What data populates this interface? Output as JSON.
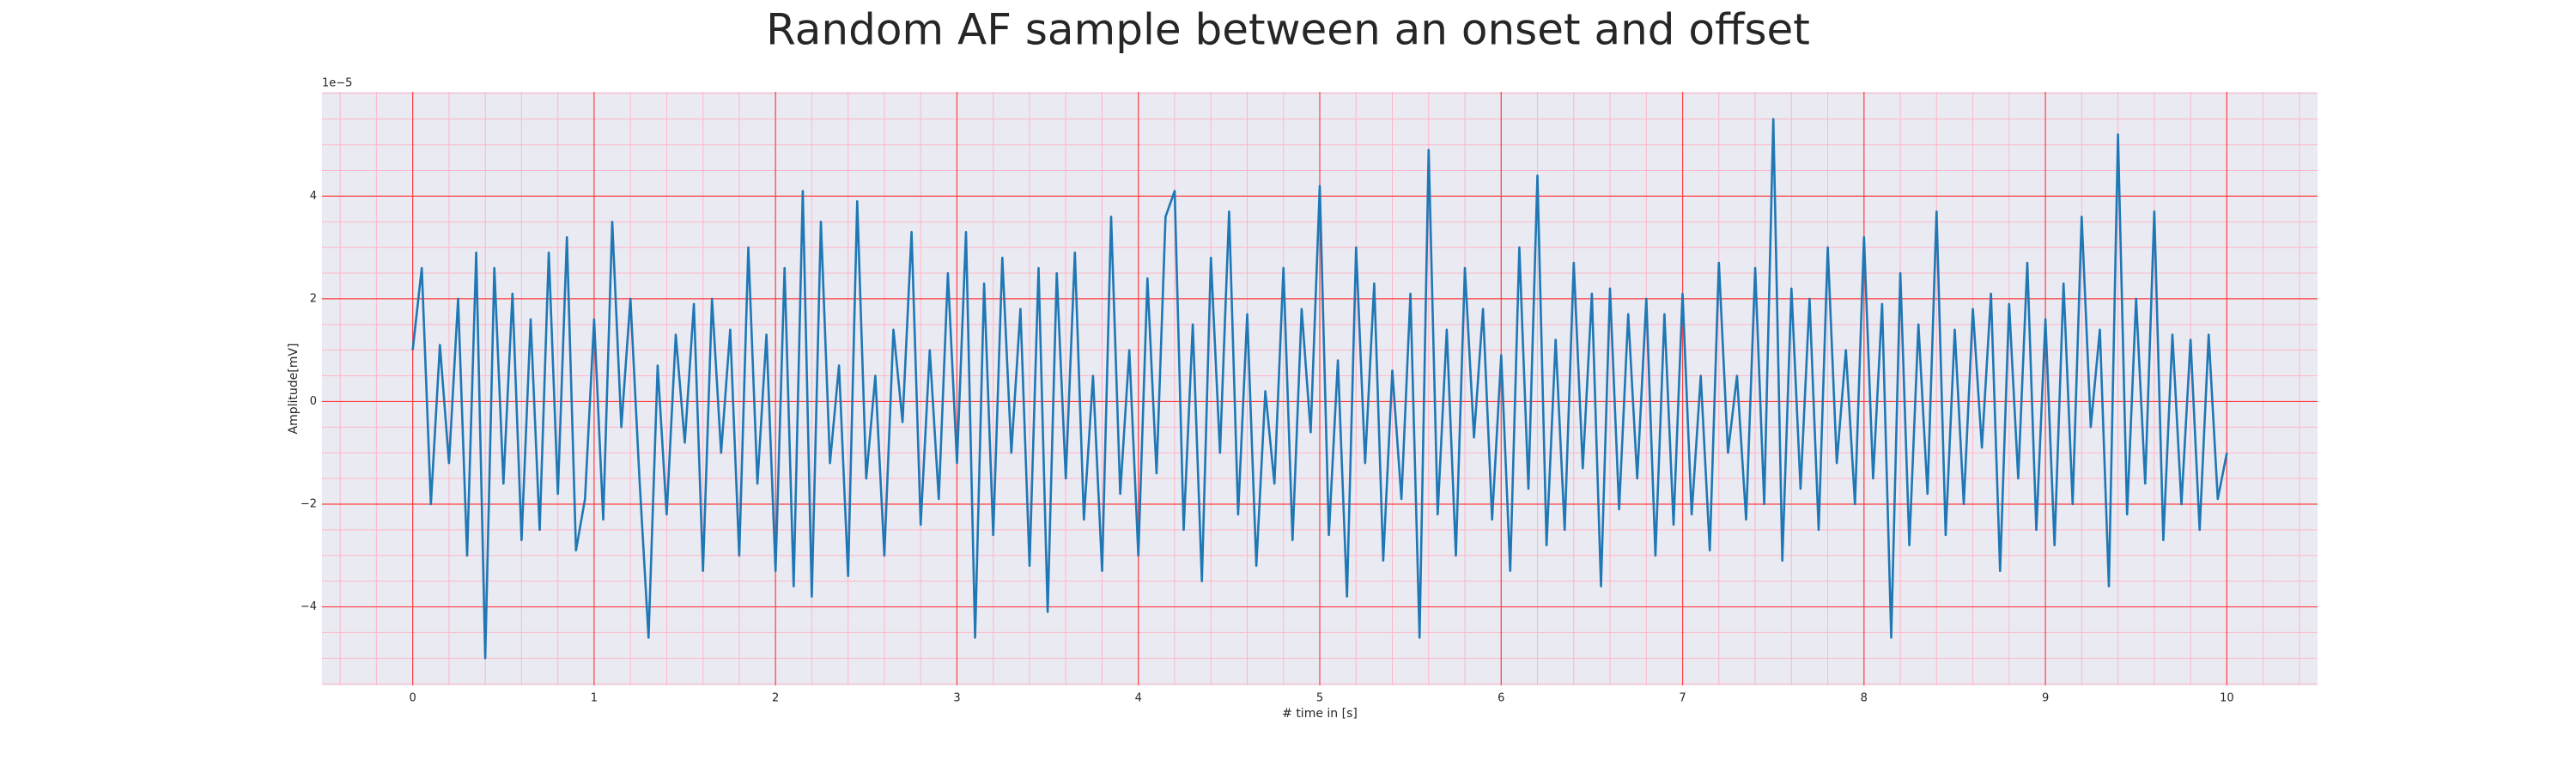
{
  "chart_data": {
    "type": "line",
    "title": "Random AF sample between an onset and offset",
    "xlabel": "# time in [s]",
    "ylabel": "Amplitude[mV]",
    "y_offset_label": "1e−5",
    "x": [
      0,
      0.05,
      0.1,
      0.15,
      0.2,
      0.25,
      0.3,
      0.35,
      0.4,
      0.45,
      0.5,
      0.55,
      0.6,
      0.65,
      0.7,
      0.75,
      0.8,
      0.85,
      0.9,
      0.95,
      1,
      1.05,
      1.1,
      1.15,
      1.2,
      1.25,
      1.3,
      1.35,
      1.4,
      1.45,
      1.5,
      1.55,
      1.6,
      1.65,
      1.7,
      1.75,
      1.8,
      1.85,
      1.9,
      1.95,
      2,
      2.05,
      2.1,
      2.15,
      2.2,
      2.25,
      2.3,
      2.35,
      2.4,
      2.45,
      2.5,
      2.55,
      2.6,
      2.65,
      2.7,
      2.75,
      2.8,
      2.85,
      2.9,
      2.95,
      3,
      3.05,
      3.1,
      3.15,
      3.2,
      3.25,
      3.3,
      3.35,
      3.4,
      3.45,
      3.5,
      3.55,
      3.6,
      3.65,
      3.7,
      3.75,
      3.8,
      3.85,
      3.9,
      3.95,
      4,
      4.05,
      4.1,
      4.15,
      4.2,
      4.25,
      4.3,
      4.35,
      4.4,
      4.45,
      4.5,
      4.55,
      4.6,
      4.65,
      4.7,
      4.75,
      4.8,
      4.85,
      4.9,
      4.95,
      5,
      5.05,
      5.1,
      5.15,
      5.2,
      5.25,
      5.3,
      5.35,
      5.4,
      5.45,
      5.5,
      5.55,
      5.6,
      5.65,
      5.7,
      5.75,
      5.8,
      5.85,
      5.9,
      5.95,
      6,
      6.05,
      6.1,
      6.15,
      6.2,
      6.25,
      6.3,
      6.35,
      6.4,
      6.45,
      6.5,
      6.55,
      6.6,
      6.65,
      6.7,
      6.75,
      6.8,
      6.85,
      6.9,
      6.95,
      7,
      7.05,
      7.1,
      7.15,
      7.2,
      7.25,
      7.3,
      7.35,
      7.4,
      7.45,
      7.5,
      7.55,
      7.6,
      7.65,
      7.7,
      7.75,
      7.8,
      7.85,
      7.9,
      7.95,
      8,
      8.05,
      8.1,
      8.15,
      8.2,
      8.25,
      8.3,
      8.35,
      8.4,
      8.45,
      8.5,
      8.55,
      8.6,
      8.65,
      8.7,
      8.75,
      8.8,
      8.85,
      8.9,
      8.95,
      9,
      9.05,
      9.1,
      9.15,
      9.2,
      9.25,
      9.3,
      9.35,
      9.4,
      9.45,
      9.5,
      9.55,
      9.6,
      9.65,
      9.7,
      9.75,
      9.8,
      9.85,
      9.9,
      9.95,
      10
    ],
    "series": [
      {
        "color": "#1f77b4",
        "values": [
          1.0,
          2.6,
          -2.0,
          1.1,
          -1.2,
          2.0,
          -3.0,
          2.9,
          -5.0,
          2.6,
          -1.6,
          2.1,
          -2.7,
          1.6,
          -2.5,
          2.9,
          -1.8,
          3.2,
          -2.9,
          -1.9,
          1.6,
          -2.3,
          3.5,
          -0.5,
          2.0,
          -1.5,
          -4.6,
          0.7,
          -2.2,
          1.3,
          -0.8,
          1.9,
          -3.3,
          2.0,
          -1.0,
          1.4,
          -3.0,
          3.0,
          -1.6,
          1.3,
          -3.3,
          2.6,
          -3.6,
          4.1,
          -3.8,
          3.5,
          -1.2,
          0.7,
          -3.4,
          3.9,
          -1.5,
          0.5,
          -3.0,
          1.4,
          -0.4,
          3.3,
          -2.4,
          1.0,
          -1.9,
          2.5,
          -1.2,
          3.3,
          -4.6,
          2.3,
          -2.6,
          2.8,
          -1.0,
          1.8,
          -3.2,
          2.6,
          -4.1,
          2.5,
          -1.5,
          2.9,
          -2.3,
          0.5,
          -3.3,
          3.6,
          -1.8,
          1.0,
          -3.0,
          2.4,
          -1.4,
          3.6,
          4.1,
          -2.5,
          1.5,
          -3.5,
          2.8,
          -1.0,
          3.7,
          -2.2,
          1.7,
          -3.2,
          0.2,
          -1.6,
          2.6,
          -2.7,
          1.8,
          -0.6,
          4.2,
          -2.6,
          0.8,
          -3.8,
          3.0,
          -1.2,
          2.3,
          -3.1,
          0.6,
          -1.9,
          2.1,
          -4.6,
          4.9,
          -2.2,
          1.4,
          -3.0,
          2.6,
          -0.7,
          1.8,
          -2.3,
          0.9,
          -3.3,
          3.0,
          -1.7,
          4.4,
          -2.8,
          1.2,
          -2.5,
          2.7,
          -1.3,
          2.1,
          -3.6,
          2.2,
          -2.1,
          1.7,
          -1.5,
          2.0,
          -3.0,
          1.7,
          -2.4,
          2.1,
          -2.2,
          0.5,
          -2.9,
          2.7,
          -1.0,
          0.5,
          -2.3,
          2.6,
          -2.0,
          5.5,
          -3.1,
          2.2,
          -1.7,
          2.0,
          -2.5,
          3.0,
          -1.2,
          1.0,
          -2.0,
          3.2,
          -1.5,
          1.9,
          -4.6,
          2.5,
          -2.8,
          1.5,
          -1.8,
          3.7,
          -2.6,
          1.4,
          -2.0,
          1.8,
          -0.9,
          2.1,
          -3.3,
          1.9,
          -1.5,
          2.7,
          -2.5,
          1.6,
          -2.8,
          2.3,
          -2.0,
          3.6,
          -0.5,
          1.4,
          -3.6,
          5.2,
          -2.2,
          2.0,
          -1.6,
          3.7,
          -2.7,
          1.3,
          -2.0,
          1.2,
          -2.5,
          1.3,
          -1.9,
          -1.0
        ]
      }
    ],
    "xlim": [
      -0.5,
      10.5
    ],
    "ylim": [
      -5.53,
      6.03
    ],
    "xticks": [
      0,
      1,
      2,
      3,
      4,
      5,
      6,
      7,
      8,
      9,
      10
    ],
    "yticks": [
      {
        "value": -4,
        "label": "−4"
      },
      {
        "value": -2,
        "label": "−2"
      },
      0,
      2,
      4
    ],
    "grid": true,
    "grid_color": "#ff4040",
    "minor_grid": {
      "x_per_major": 5,
      "y_per_major": 4,
      "color": "#ffb6c8"
    },
    "background": "#eaeaf2"
  }
}
